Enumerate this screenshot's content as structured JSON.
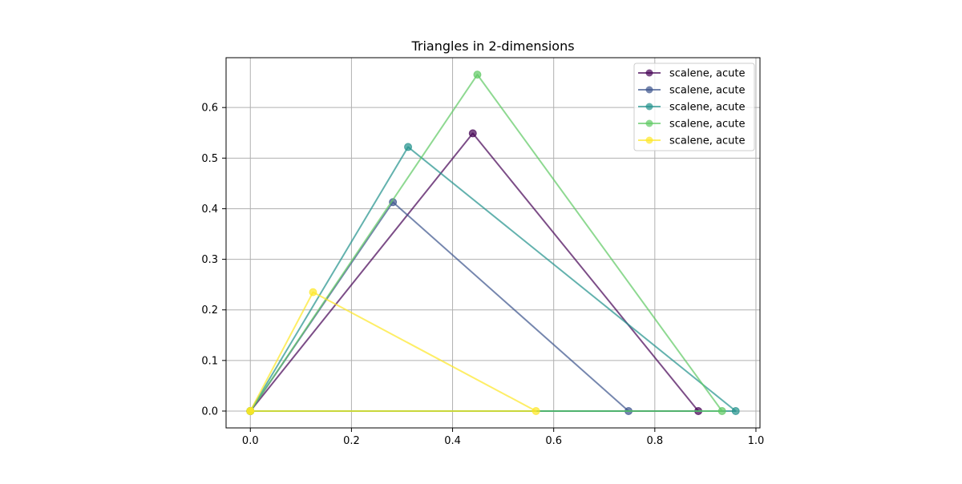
{
  "chart_data": {
    "type": "line",
    "title": "Triangles in 2-dimensions",
    "xlabel": "",
    "ylabel": "",
    "xlim": [
      -0.048,
      1.008
    ],
    "ylim": [
      -0.0333,
      0.6985
    ],
    "xticks": [
      0.0,
      0.2,
      0.4,
      0.6,
      0.8,
      1.0
    ],
    "xtick_labels": [
      "0.0",
      "0.2",
      "0.4",
      "0.6",
      "0.8",
      "1.0"
    ],
    "yticks": [
      0.0,
      0.1,
      0.2,
      0.3,
      0.4,
      0.5,
      0.6
    ],
    "ytick_labels": [
      "0.0",
      "0.1",
      "0.2",
      "0.3",
      "0.4",
      "0.5",
      "0.6"
    ],
    "grid": true,
    "legend_position": "top-right",
    "series": [
      {
        "name": "scalene, acute",
        "color": "#440154",
        "x": [
          0.0,
          0.886,
          0.44,
          0.0
        ],
        "y": [
          0.0,
          0.0,
          0.549,
          0.0
        ]
      },
      {
        "name": "scalene, acute",
        "color": "#3b528b",
        "x": [
          0.0,
          0.748,
          0.282,
          0.0
        ],
        "y": [
          0.0,
          0.0,
          0.413,
          0.0
        ]
      },
      {
        "name": "scalene, acute",
        "color": "#21918c",
        "x": [
          0.0,
          0.96,
          0.312,
          0.0
        ],
        "y": [
          0.0,
          0.0,
          0.522,
          0.0
        ]
      },
      {
        "name": "scalene, acute",
        "color": "#5ec962",
        "x": [
          0.0,
          0.933,
          0.449,
          0.0
        ],
        "y": [
          0.0,
          0.0,
          0.665,
          0.0
        ]
      },
      {
        "name": "scalene, acute",
        "color": "#fde725",
        "x": [
          0.0,
          0.565,
          0.124,
          0.0
        ],
        "y": [
          0.0,
          0.0,
          0.235,
          0.0
        ]
      }
    ]
  }
}
